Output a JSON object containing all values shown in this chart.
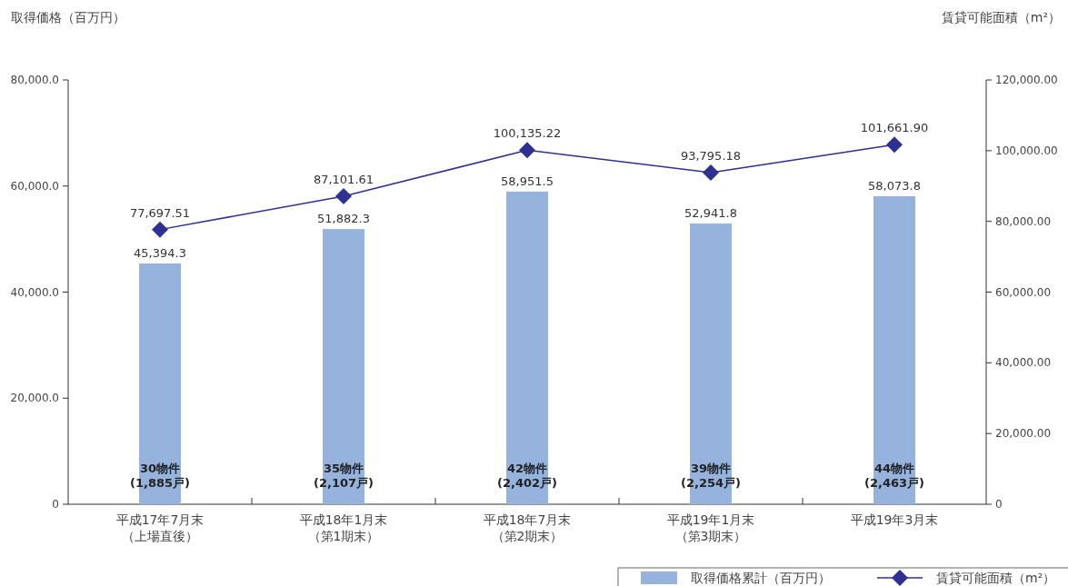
{
  "chart_data": {
    "type": "bar",
    "categories": [
      "平成17年7月末（上場直後）",
      "平成18年1月末（第1期末）",
      "平成18年7月末（第2期末）",
      "平成19年1月末（第3期末）",
      "平成19年3月末"
    ],
    "series": [
      {
        "name": "取得価格累計（百万円）",
        "color": "#95b3dc",
        "values": [
          45394.3,
          51882.3,
          58951.5,
          52941.8,
          58073.8
        ],
        "value_labels": [
          "45,394.3",
          "51,882.3",
          "58,951.5",
          "52,941.8",
          "58,073.8"
        ]
      },
      {
        "name": "賃貸可能面積（m²）",
        "type": "line",
        "axis": "y2",
        "color": "#2e3192",
        "marker": "diamond",
        "values": [
          77697.51,
          87101.61,
          100135.22,
          93795.18,
          101661.9
        ],
        "value_labels": [
          "77,697.51",
          "87,101.61",
          "100,135.22",
          "93,795.18",
          "101,661.90"
        ]
      }
    ],
    "ylabel": "取得価格（百万円）",
    "y2label": "賃貸可能面積（m²）",
    "ylim": [
      0,
      80000
    ],
    "yticks": [
      0,
      {
        "value": 20000,
        "label": "20,000.0"
      },
      {
        "value": 40000,
        "label": "40,000.0"
      },
      {
        "value": 60000,
        "label": "60,000.0"
      },
      {
        "value": 80000,
        "label": "80,000.0"
      }
    ],
    "y2lim": [
      0,
      120000
    ],
    "y2ticks": [
      0,
      {
        "value": 20000,
        "label": "20,000.00"
      },
      {
        "value": 40000,
        "label": "40,000.00"
      },
      {
        "value": 60000,
        "label": "60,000.00"
      },
      {
        "value": 80000,
        "label": "80,000.00"
      },
      {
        "value": 100000,
        "label": "100,000.00"
      },
      {
        "value": 120000,
        "label": "120,000.00"
      }
    ],
    "annotations": [
      "30物件(1,885戸)",
      "35物件(2,107戸)",
      "42物件(2,402戸)",
      "39物件(2,254戸)",
      "44物件(2,463戸)"
    ],
    "legend": "bottom right",
    "grid": false
  }
}
